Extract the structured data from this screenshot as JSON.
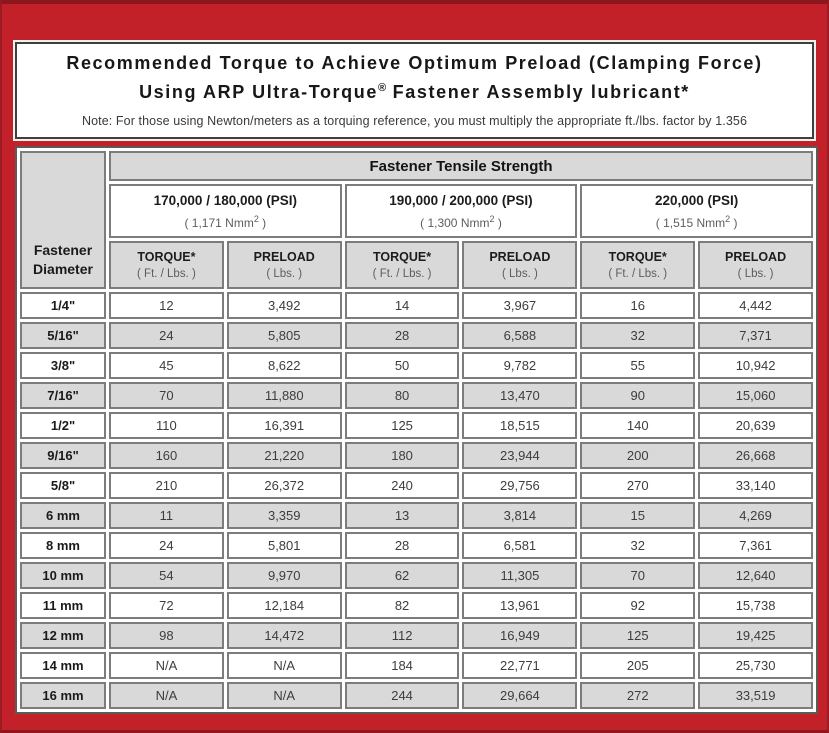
{
  "colors": {
    "frame_red": "#c2212a",
    "frame_red_dark": "#8e171e",
    "cell_gray": "#d9d9d9",
    "cell_border": "#7c7c7c",
    "text_dark": "#1a1a1a",
    "text_muted": "#5d5d5d"
  },
  "title": {
    "line1": "Recommended Torque to Achieve Optimum Preload (Clamping Force)",
    "line2_prefix": "Using ARP Ultra-Torque",
    "line2_sup": "®",
    "line2_suffix": " Fastener Assembly lubricant*",
    "note": "Note: For those using Newton/meters as a torquing reference, you must multiply the appropriate ft./lbs. factor by 1.356"
  },
  "table": {
    "corner_header_line1": "Fastener",
    "corner_header_line2": "Diameter",
    "group_header": "Fastener Tensile Strength",
    "strength_groups": [
      {
        "psi": "170,000 / 180,000 (PSI)",
        "nmm_pre": "( 1,171 Nmm",
        "nmm_sup": "2",
        "nmm_post": " )"
      },
      {
        "psi": "190,000 / 200,000 (PSI)",
        "nmm_pre": "( 1,300 Nmm",
        "nmm_sup": "2",
        "nmm_post": " )"
      },
      {
        "psi": "220,000 (PSI)",
        "nmm_pre": "( 1,515 Nmm",
        "nmm_sup": "2",
        "nmm_post": " )"
      }
    ],
    "col_headers": [
      {
        "label": "TORQUE*",
        "sub": "( Ft. / Lbs. )"
      },
      {
        "label": "PRELOAD",
        "sub": "( Lbs. )"
      }
    ],
    "rows": [
      {
        "diameter": "1/4\"",
        "values": [
          "12",
          "3,492",
          "14",
          "3,967",
          "16",
          "4,442"
        ]
      },
      {
        "diameter": "5/16\"",
        "values": [
          "24",
          "5,805",
          "28",
          "6,588",
          "32",
          "7,371"
        ]
      },
      {
        "diameter": "3/8\"",
        "values": [
          "45",
          "8,622",
          "50",
          "9,782",
          "55",
          "10,942"
        ]
      },
      {
        "diameter": "7/16\"",
        "values": [
          "70",
          "11,880",
          "80",
          "13,470",
          "90",
          "15,060"
        ]
      },
      {
        "diameter": "1/2\"",
        "values": [
          "110",
          "16,391",
          "125",
          "18,515",
          "140",
          "20,639"
        ]
      },
      {
        "diameter": "9/16\"",
        "values": [
          "160",
          "21,220",
          "180",
          "23,944",
          "200",
          "26,668"
        ]
      },
      {
        "diameter": "5/8\"",
        "values": [
          "210",
          "26,372",
          "240",
          "29,756",
          "270",
          "33,140"
        ]
      },
      {
        "diameter": "6 mm",
        "values": [
          "11",
          "3,359",
          "13",
          "3,814",
          "15",
          "4,269"
        ]
      },
      {
        "diameter": "8 mm",
        "values": [
          "24",
          "5,801",
          "28",
          "6,581",
          "32",
          "7,361"
        ]
      },
      {
        "diameter": "10 mm",
        "values": [
          "54",
          "9,970",
          "62",
          "11,305",
          "70",
          "12,640"
        ]
      },
      {
        "diameter": "11 mm",
        "values": [
          "72",
          "12,184",
          "82",
          "13,961",
          "92",
          "15,738"
        ]
      },
      {
        "diameter": "12 mm",
        "values": [
          "98",
          "14,472",
          "112",
          "16,949",
          "125",
          "19,425"
        ]
      },
      {
        "diameter": "14 mm",
        "values": [
          "N/A",
          "N/A",
          "184",
          "22,771",
          "205",
          "25,730"
        ]
      },
      {
        "diameter": "16 mm",
        "values": [
          "N/A",
          "N/A",
          "244",
          "29,664",
          "272",
          "33,519"
        ]
      }
    ]
  }
}
